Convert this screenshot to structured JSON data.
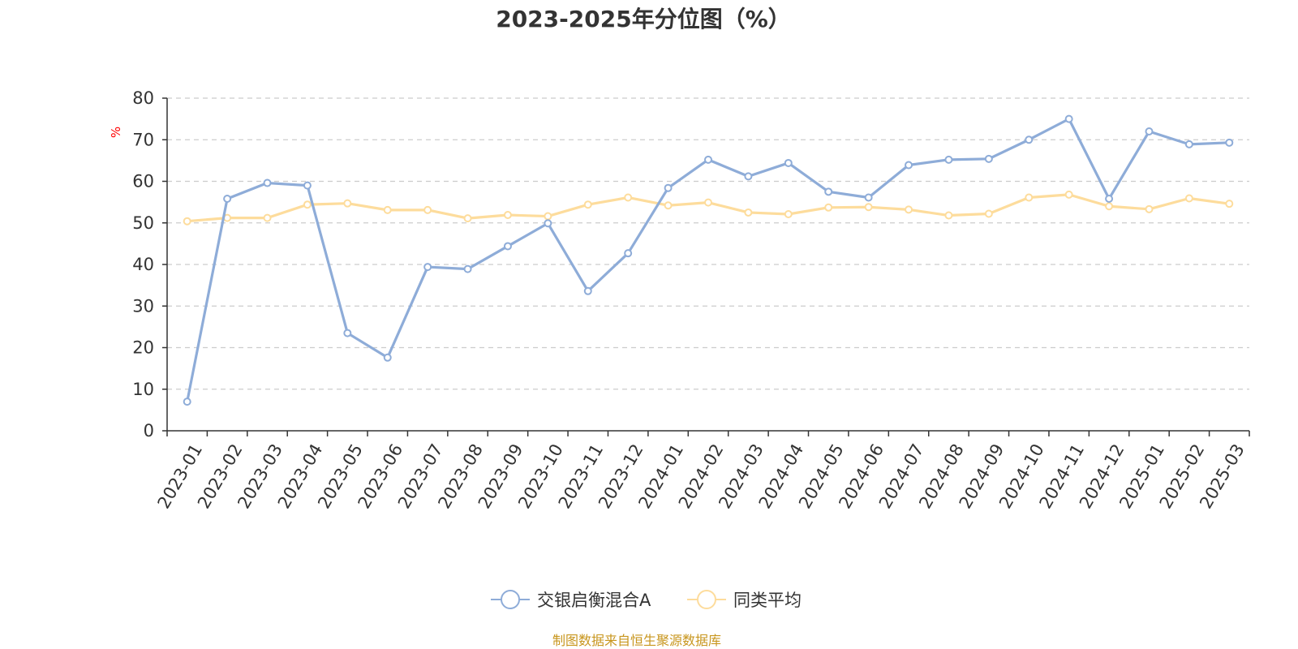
{
  "chart_data": {
    "type": "line",
    "title": "2023-2025年分位图（%）",
    "ylabel": "%",
    "ylim": [
      0,
      80
    ],
    "yticks": [
      0,
      10,
      20,
      30,
      40,
      50,
      60,
      70,
      80
    ],
    "grid": true,
    "legend_position": "bottom-center",
    "categories": [
      "2023-01",
      "2023-02",
      "2023-03",
      "2023-04",
      "2023-05",
      "2023-06",
      "2023-07",
      "2023-08",
      "2023-09",
      "2023-10",
      "2023-11",
      "2023-12",
      "2024-01",
      "2024-02",
      "2024-03",
      "2024-04",
      "2024-05",
      "2024-06",
      "2024-07",
      "2024-08",
      "2024-09",
      "2024-10",
      "2024-11",
      "2024-12",
      "2025-01",
      "2025-02",
      "2025-03"
    ],
    "series": [
      {
        "name": "交银启衡混合A",
        "color": "#8eacd8",
        "values": [
          7.0,
          55.8,
          59.6,
          59.0,
          23.5,
          17.6,
          39.4,
          38.9,
          44.4,
          49.9,
          33.6,
          42.7,
          58.4,
          65.2,
          61.2,
          64.4,
          57.5,
          56.1,
          63.9,
          65.2,
          65.4,
          70.0,
          75.0,
          55.8,
          72.0,
          68.9,
          69.3
        ]
      },
      {
        "name": "同类平均",
        "color": "#fddc9c",
        "values": [
          50.4,
          51.2,
          51.2,
          54.4,
          54.7,
          53.1,
          53.1,
          51.1,
          51.9,
          51.6,
          54.4,
          56.1,
          54.2,
          54.9,
          52.5,
          52.1,
          53.7,
          53.8,
          53.2,
          51.8,
          52.2,
          56.1,
          56.8,
          54.0,
          53.3,
          55.9,
          54.6
        ]
      }
    ],
    "source": "制图数据来自恒生聚源数据库"
  },
  "colors": {
    "axis": "#333333",
    "grid": "#cccccc",
    "unit": "#ff0000",
    "source": "#c8961e"
  }
}
